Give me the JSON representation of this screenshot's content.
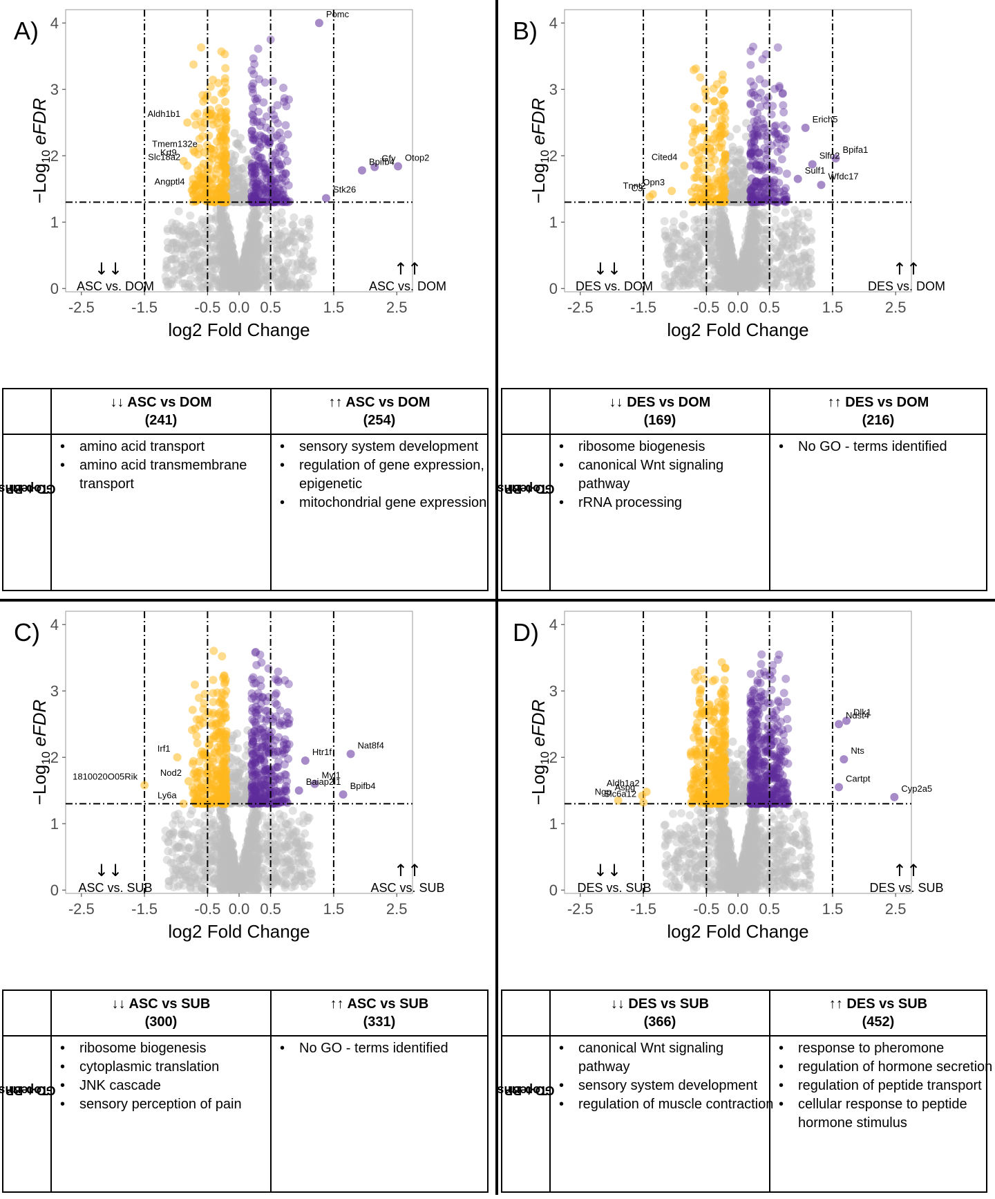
{
  "axis": {
    "xlabel": "log2 Fold Change",
    "ylabel_prefix": "−Log",
    "ylabel_sub": "10",
    "ylabel_suffix": " eFDR",
    "xticks": [
      -2.5,
      -1.5,
      -0.5,
      0.0,
      0.5,
      1.5,
      2.5
    ],
    "xtick_labels": [
      "-2.5",
      "-1.5",
      "-0.5",
      "0.0",
      "0.5",
      "1.5",
      "2.5"
    ],
    "yticks": [
      0,
      1,
      2,
      3,
      4
    ],
    "xlim": [
      -2.75,
      2.75
    ],
    "ylim": [
      -0.05,
      4.2
    ],
    "fdr_threshold": 1.3,
    "fc_thresholds": [
      -1.5,
      -0.5,
      0.5,
      1.5
    ]
  },
  "colors": {
    "down": "#FFB81C",
    "up": "#5E2C9A",
    "ns": "#BEBEBE"
  },
  "table": {
    "row_label_line1": "Top BP",
    "row_label_line2": "GO-terms"
  },
  "panels": [
    {
      "letter": "A)",
      "down_arrows": "↓↓",
      "up_arrows": "↑↑",
      "down_label": "ASC vs. DOM",
      "up_label": "ASC vs. DOM",
      "col1_title": "↓↓ ASC vs DOM",
      "col1_count": "(241)",
      "col2_title": "↑↑ ASC vs DOM",
      "col2_count": "(254)",
      "col1_terms": [
        "amino acid transport",
        "amino acid transmembrane transport"
      ],
      "col2_terms": [
        "sensory system development",
        "regulation of gene expression, epigenetic",
        "mitochondrial gene expression"
      ],
      "chart_data": {
        "type": "scatter",
        "labeled_points": [
          {
            "gene": "Pomc",
            "x": 1.27,
            "y": 4.0
          },
          {
            "gene": "Aldh1b1",
            "x": -0.82,
            "y": 2.5
          },
          {
            "gene": "Tmem132e",
            "x": -0.55,
            "y": 2.05
          },
          {
            "gene": "Krt9",
            "x": -0.88,
            "y": 1.92
          },
          {
            "gene": "Slc18a2",
            "x": -0.82,
            "y": 1.85
          },
          {
            "gene": "Angptl4",
            "x": -0.75,
            "y": 1.48
          },
          {
            "gene": "Otop2",
            "x": 2.52,
            "y": 1.84
          },
          {
            "gene": "Gfy",
            "x": 2.15,
            "y": 1.83
          },
          {
            "gene": "Bpifb4",
            "x": 1.95,
            "y": 1.78
          },
          {
            "gene": "Stk26",
            "x": 1.38,
            "y": 1.36
          }
        ]
      }
    },
    {
      "letter": "B)",
      "down_arrows": "↓↓",
      "up_arrows": "↑↑",
      "down_label": "DES vs. DOM",
      "up_label": "DES vs. DOM",
      "col1_title": "↓↓ DES vs DOM",
      "col1_count": "(169)",
      "col2_title": "↑↑ DES vs DOM",
      "col2_count": "(216)",
      "col1_terms": [
        "ribosome biogenesis",
        "canonical Wnt signaling pathway",
        "rRNA processing"
      ],
      "col2_terms": [
        "No GO - terms identified"
      ],
      "chart_data": {
        "type": "scatter",
        "labeled_points": [
          {
            "gene": "Erich5",
            "x": 1.07,
            "y": 2.42
          },
          {
            "gene": "Bpifa1",
            "x": 1.55,
            "y": 1.96
          },
          {
            "gene": "Slfn2",
            "x": 1.18,
            "y": 1.87
          },
          {
            "gene": "Sulf1",
            "x": 0.95,
            "y": 1.65
          },
          {
            "gene": "Wfdc17",
            "x": 1.32,
            "y": 1.56
          },
          {
            "gene": "Cited4",
            "x": -0.85,
            "y": 1.85
          },
          {
            "gene": "C3",
            "x": -1.4,
            "y": 1.38
          },
          {
            "gene": "Opn3",
            "x": -1.05,
            "y": 1.47
          },
          {
            "gene": "Tnnt2",
            "x": -1.35,
            "y": 1.42
          }
        ]
      }
    },
    {
      "letter": "C)",
      "down_arrows": "↓↓",
      "up_arrows": "↑↑",
      "down_label": "ASC vs. SUB",
      "up_label": "ASC vs. SUB",
      "col1_title": "↓↓ ASC vs SUB",
      "col1_count": "(300)",
      "col2_title": "↑↑ ASC vs SUB",
      "col2_count": "(331)",
      "col1_terms": [
        "ribosome biogenesis",
        "cytoplasmic translation",
        "JNK cascade",
        "sensory perception of pain"
      ],
      "col2_terms": [
        "No GO - terms identified"
      ],
      "chart_data": {
        "type": "scatter",
        "labeled_points": [
          {
            "gene": "Htr1f",
            "x": 1.05,
            "y": 1.95
          },
          {
            "gene": "Nat8f4",
            "x": 1.77,
            "y": 2.05
          },
          {
            "gene": "Myl1",
            "x": 1.2,
            "y": 1.6
          },
          {
            "gene": "Baiap2l1",
            "x": 0.95,
            "y": 1.5
          },
          {
            "gene": "Bpifb4",
            "x": 1.65,
            "y": 1.44
          },
          {
            "gene": "Irf1",
            "x": -0.98,
            "y": 2.0
          },
          {
            "gene": "1810020O05Rik",
            "x": -1.5,
            "y": 1.58
          },
          {
            "gene": "Nod2",
            "x": -0.8,
            "y": 1.64
          },
          {
            "gene": "Ly6a",
            "x": -0.88,
            "y": 1.3
          }
        ]
      }
    },
    {
      "letter": "D)",
      "down_arrows": "↓↓",
      "up_arrows": "↑↑",
      "down_label": "DES vs. SUB",
      "up_label": "DES vs. SUB",
      "col1_title": "↓↓ DES vs SUB",
      "col1_count": "(366)",
      "col2_title": "↑↑ DES vs SUB",
      "col2_count": "(452)",
      "col1_terms": [
        "canonical Wnt signaling pathway",
        "sensory system development",
        "regulation of muscle contraction"
      ],
      "col2_terms": [
        "response to pheromone",
        "regulation of hormone secretion",
        "regulation of peptide transport",
        "cellular response to peptide hormone stimulus"
      ],
      "chart_data": {
        "type": "scatter",
        "labeled_points": [
          {
            "gene": "Dlk1",
            "x": 1.72,
            "y": 2.55
          },
          {
            "gene": "Ndst4",
            "x": 1.6,
            "y": 2.5
          },
          {
            "gene": "Nts",
            "x": 1.68,
            "y": 1.97
          },
          {
            "gene": "Cartpt",
            "x": 1.6,
            "y": 1.55
          },
          {
            "gene": "Cyp2a5",
            "x": 2.48,
            "y": 1.4
          },
          {
            "gene": "Aldh1a2",
            "x": -1.45,
            "y": 1.48
          },
          {
            "gene": "Aspg",
            "x": -1.52,
            "y": 1.42
          },
          {
            "gene": "Ngp",
            "x": -1.9,
            "y": 1.35
          },
          {
            "gene": "Slc6a12",
            "x": -1.5,
            "y": 1.32
          }
        ]
      }
    }
  ]
}
